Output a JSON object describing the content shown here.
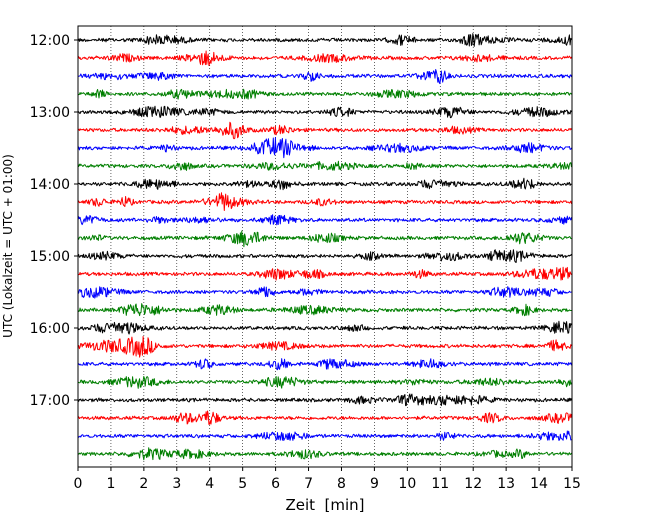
{
  "chart_data": {
    "type": "line",
    "title": "",
    "xlabel": "Zeit  [min]",
    "ylabel": "UTC (Lokalzeit = UTC + 01:00)",
    "xlim": [
      0,
      15
    ],
    "x_ticks": [
      "0",
      "1",
      "2",
      "3",
      "4",
      "5",
      "6",
      "7",
      "8",
      "9",
      "10",
      "11",
      "12",
      "13",
      "14",
      "15"
    ],
    "y_ticks": [
      "12:00",
      "13:00",
      "14:00",
      "15:00",
      "16:00",
      "17:00"
    ],
    "grid": "vertical dotted lines at each minute",
    "trace_interval_minutes": 15,
    "trace_colors_cycle": [
      "#000000",
      "#ff0000",
      "#0000ff",
      "#007f00"
    ],
    "series": [
      {
        "start": "12:00",
        "color": "#000000"
      },
      {
        "start": "12:15",
        "color": "#ff0000"
      },
      {
        "start": "12:30",
        "color": "#0000ff"
      },
      {
        "start": "12:45",
        "color": "#007f00"
      },
      {
        "start": "13:00",
        "color": "#000000"
      },
      {
        "start": "13:15",
        "color": "#ff0000"
      },
      {
        "start": "13:30",
        "color": "#0000ff"
      },
      {
        "start": "13:45",
        "color": "#007f00"
      },
      {
        "start": "14:00",
        "color": "#000000"
      },
      {
        "start": "14:15",
        "color": "#ff0000"
      },
      {
        "start": "14:30",
        "color": "#0000ff"
      },
      {
        "start": "14:45",
        "color": "#007f00"
      },
      {
        "start": "15:00",
        "color": "#000000"
      },
      {
        "start": "15:15",
        "color": "#ff0000"
      },
      {
        "start": "15:30",
        "color": "#0000ff"
      },
      {
        "start": "15:45",
        "color": "#007f00"
      },
      {
        "start": "16:00",
        "color": "#000000"
      },
      {
        "start": "16:15",
        "color": "#ff0000"
      },
      {
        "start": "16:30",
        "color": "#0000ff"
      },
      {
        "start": "16:45",
        "color": "#007f00"
      },
      {
        "start": "17:00",
        "color": "#000000"
      },
      {
        "start": "17:15",
        "color": "#ff0000"
      },
      {
        "start": "17:30",
        "color": "#0000ff"
      },
      {
        "start": "17:45",
        "color": "#007f00"
      }
    ]
  }
}
